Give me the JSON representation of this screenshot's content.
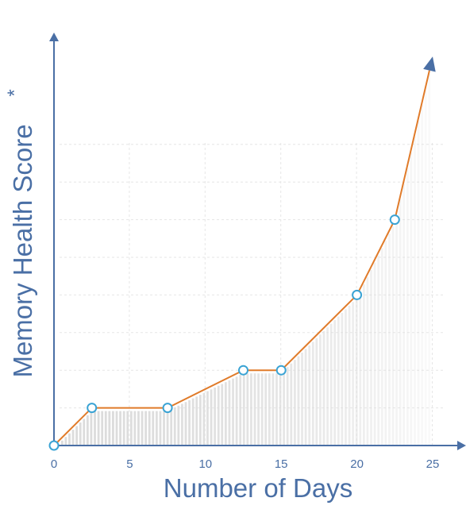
{
  "chart_data": {
    "type": "line",
    "xlabel": "Number of Days",
    "ylabel": "Memory Health Score",
    "ylabel_marker": "*",
    "x_ticks": [
      0,
      5,
      10,
      15,
      20,
      25
    ],
    "xlim": [
      0,
      25
    ],
    "ylim": [
      0,
      9
    ],
    "grid": true,
    "series": [
      {
        "x": [
          0,
          2.5,
          7.5,
          12.5,
          15,
          20,
          22.5,
          25
        ],
        "y": [
          0,
          0.9,
          0.9,
          1.8,
          1.8,
          3.6,
          5.4,
          9.3
        ],
        "markers": [
          true,
          true,
          true,
          true,
          true,
          true,
          true,
          false
        ],
        "arrow_end": true
      }
    ],
    "fill_under_curve": true,
    "colors": {
      "line": "#e07b2a",
      "marker_edge": "#3aa3d4",
      "marker_fill": "#ffffff",
      "axis": "#4a6fa5",
      "fill_bars": "#dcdcdc",
      "grid": "#e6e6e6"
    }
  }
}
